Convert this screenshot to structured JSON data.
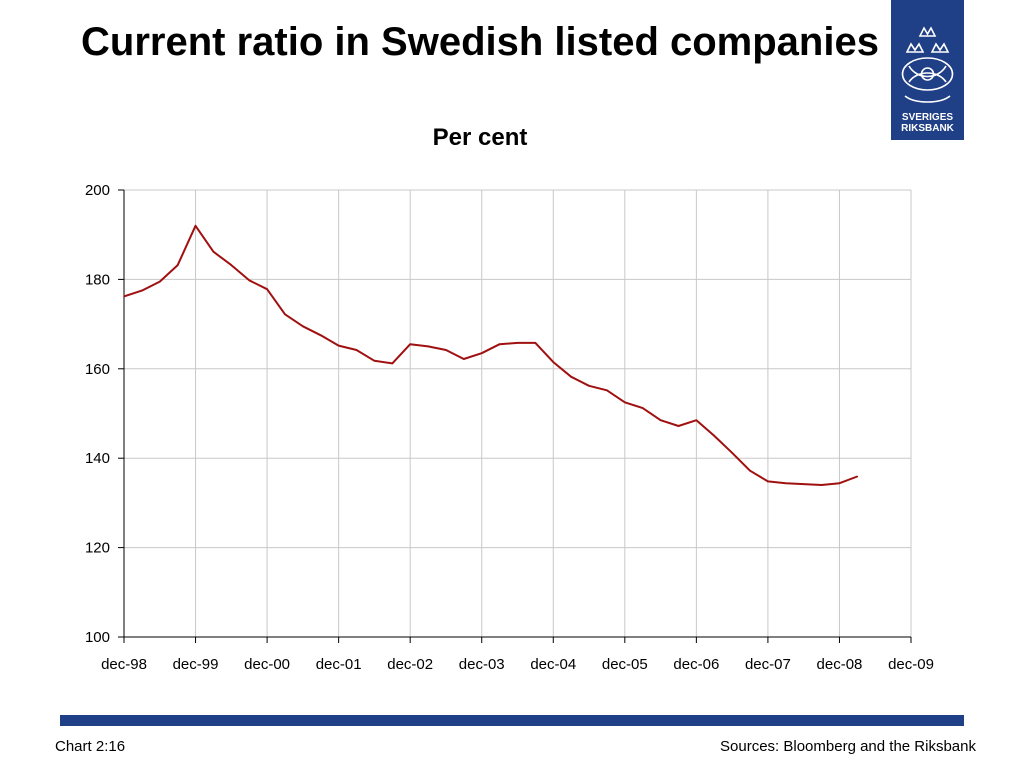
{
  "title": "Current ratio in Swedish listed companies",
  "subtitle": "Per cent",
  "logo": {
    "line1": "SVERIGES",
    "line2": "RIKSBANK",
    "icon": "riksbank-crest-icon"
  },
  "footer": {
    "chart_label": "Chart 2:16",
    "sources": "Sources: Bloomberg and the Riksbank"
  },
  "colors": {
    "line": "#a01010",
    "brand": "#1f3f86",
    "grid": "#c8c8c8"
  },
  "chart_data": {
    "type": "line",
    "title": "Current ratio in Swedish listed companies",
    "subtitle": "Per cent",
    "xlabel": "",
    "ylabel": "",
    "ylim": [
      100,
      200
    ],
    "yticks": [
      100,
      120,
      140,
      160,
      180,
      200
    ],
    "xlim": [
      "dec-98",
      "dec-09"
    ],
    "xticks": [
      "dec-98",
      "dec-99",
      "dec-00",
      "dec-01",
      "dec-02",
      "dec-03",
      "dec-04",
      "dec-05",
      "dec-06",
      "dec-07",
      "dec-08",
      "dec-09"
    ],
    "grid": true,
    "legend": "none",
    "series": [
      {
        "x": [
          "1998Q4",
          "1999Q1",
          "1999Q2",
          "1999Q3",
          "1999Q4",
          "2000Q1",
          "2000Q2",
          "2000Q3",
          "2000Q4",
          "2001Q1",
          "2001Q2",
          "2001Q3",
          "2001Q4",
          "2002Q1",
          "2002Q2",
          "2002Q3",
          "2002Q4",
          "2003Q1",
          "2003Q2",
          "2003Q3",
          "2003Q4",
          "2004Q1",
          "2004Q2",
          "2004Q3",
          "2004Q4",
          "2005Q1",
          "2005Q2",
          "2005Q3",
          "2005Q4",
          "2006Q1",
          "2006Q2",
          "2006Q3",
          "2006Q4",
          "2007Q1",
          "2007Q2",
          "2007Q3",
          "2007Q4",
          "2008Q1",
          "2008Q2",
          "2008Q3",
          "2008Q4",
          "2009Q1"
        ],
        "values": [
          176.2,
          177.5,
          179.5,
          183.2,
          192.0,
          186.2,
          183.2,
          179.8,
          177.8,
          172.2,
          169.5,
          167.5,
          165.2,
          164.2,
          161.8,
          161.2,
          165.5,
          165.0,
          164.2,
          162.2,
          163.5,
          165.5,
          165.8,
          165.8,
          161.5,
          158.2,
          156.2,
          155.2,
          152.5,
          151.2,
          148.5,
          147.2,
          148.5,
          145.0,
          141.2,
          137.2,
          134.8,
          134.4,
          134.2,
          134.0,
          134.4,
          135.9
        ]
      }
    ]
  }
}
